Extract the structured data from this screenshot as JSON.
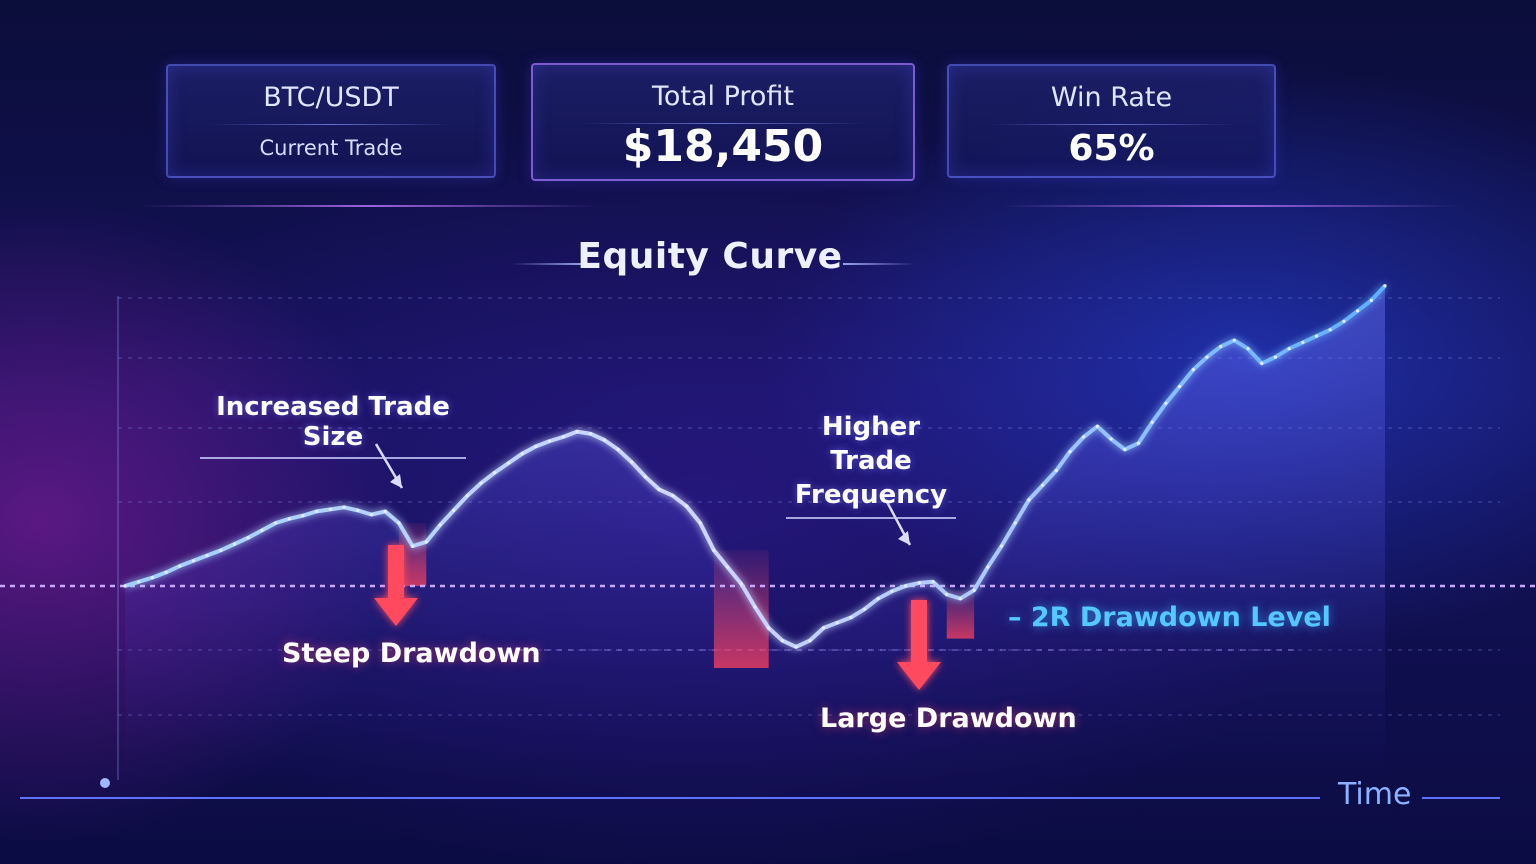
{
  "cards": [
    {
      "label": "BTC/USDT",
      "sub": "Current Trade"
    },
    {
      "label": "Total Profit",
      "value": "$18,450"
    },
    {
      "label": "Win Rate",
      "value": "65%"
    }
  ],
  "chart_data": {
    "type": "line",
    "title": "Equity Curve",
    "xlabel": "Time",
    "ylabel": "",
    "grid": true,
    "series": [
      {
        "values": [
          0,
          4,
          8,
          13,
          19,
          24,
          29,
          34,
          40,
          46,
          53,
          60,
          64,
          67,
          71,
          73,
          75,
          72,
          68,
          71,
          60,
          38,
          42,
          58,
          72,
          86,
          98,
          108,
          117,
          126,
          133,
          138,
          142,
          147,
          145,
          139,
          130,
          118,
          104,
          92,
          86,
          76,
          60,
          34,
          18,
          2,
          -20,
          -40,
          -52,
          -58,
          -52,
          -40,
          -35,
          -30,
          -22,
          -12,
          -5,
          0,
          3,
          4,
          -8,
          -12,
          -4,
          18,
          38,
          60,
          82,
          96,
          110,
          128,
          142,
          152,
          140,
          130,
          136,
          156,
          174,
          190,
          206,
          218,
          228,
          234,
          226,
          212,
          218,
          226,
          232,
          238,
          244,
          252,
          262,
          272,
          286
        ]
      }
    ],
    "reference_line": {
      "label": "– 2R Drawdown Level",
      "value": 0
    },
    "annotations": [
      {
        "text": "Increased Trade Size"
      },
      {
        "text": "Steep Drawdown"
      },
      {
        "text": "Higher Trade Frequency"
      },
      {
        "text": "Large Drawdown"
      }
    ]
  }
}
